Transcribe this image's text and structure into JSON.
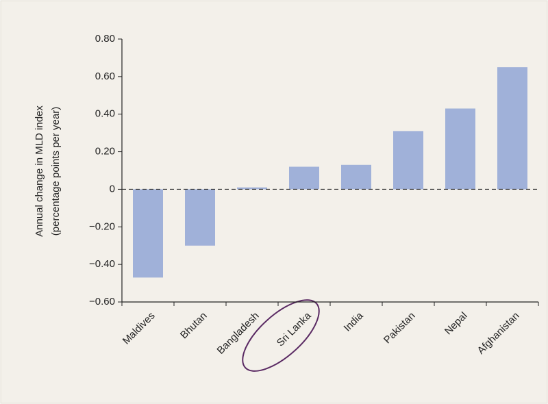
{
  "chart_data": {
    "type": "bar",
    "ylabel": [
      "Annual change in MLD index",
      "(percentage points per year)"
    ],
    "categories": [
      "Maldives",
      "Bhutan",
      "Bangladesh",
      "Sri Lanka",
      "India",
      "Pakistan",
      "Nepal",
      "Afghanistan"
    ],
    "values": [
      -0.47,
      -0.3,
      0.01,
      0.12,
      0.13,
      0.31,
      0.43,
      0.65
    ],
    "color": "#a0b1d9",
    "ylim": [
      -0.6,
      0.8
    ],
    "yticks": [
      {
        "value": 0.8,
        "label": "0.80"
      },
      {
        "value": 0.6,
        "label": "0.60"
      },
      {
        "value": 0.4,
        "label": "0.40"
      },
      {
        "value": 0.2,
        "label": "0.20"
      },
      0,
      {
        "value": -0.2,
        "label": "−0.20"
      },
      {
        "value": -0.4,
        "label": "−0.40"
      },
      {
        "value": -0.6,
        "label": "−0.60"
      }
    ],
    "grid": false
  }
}
